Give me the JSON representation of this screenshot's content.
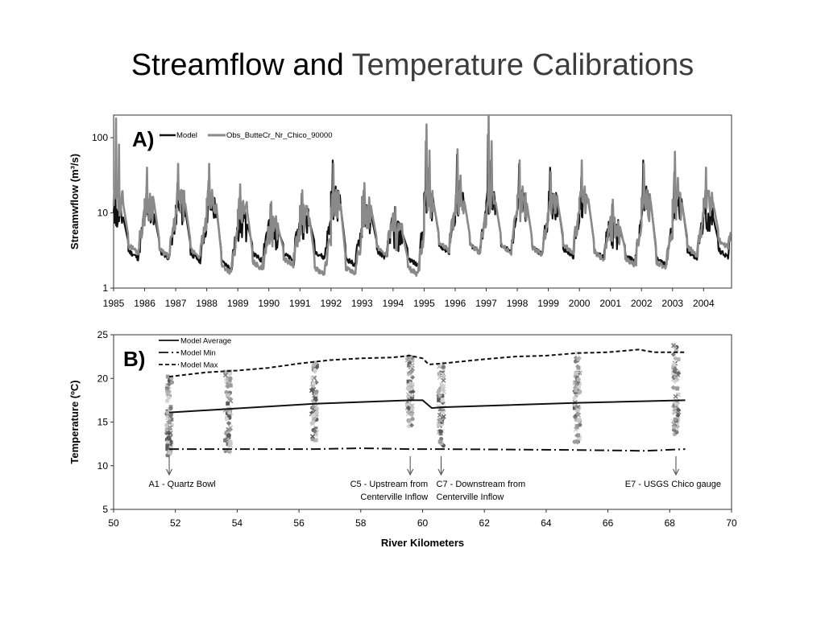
{
  "slide": {
    "title_part1": "Streamflow and",
    "title_part2": "Temperature Calibrations"
  },
  "colors": {
    "model": "#111111",
    "observed": "#8a8a8a",
    "frame": "#333333"
  },
  "chart_data": [
    {
      "type": "line",
      "panel_label": "A)",
      "ylabel": "Streamwflow (m³/s)",
      "yscale": "log",
      "ylim": [
        1,
        200
      ],
      "xlim": [
        1985,
        2004.9
      ],
      "y_ticks": [
        1,
        10,
        100
      ],
      "y_tick_labels": [
        "1",
        "10",
        "100"
      ],
      "x_tick_values": [
        1985,
        1986,
        1987,
        1988,
        1989,
        1990,
        1991,
        1992,
        1993,
        1994,
        1995,
        1996,
        1997,
        1998,
        1999,
        2000,
        2001,
        2002,
        2003,
        2004
      ],
      "x_tick_labels": [
        "1985",
        "1986",
        "1987",
        "1988",
        "1989",
        "1990",
        "1991",
        "1992",
        "1993",
        "1994",
        "1995",
        "1996",
        "1997",
        "1998",
        "1999",
        "2000",
        "2001",
        "2002",
        "2003",
        "2004"
      ],
      "legend_position": "top-left",
      "series": [
        {
          "name": "Model",
          "annual_peak": [
            20,
            22,
            25,
            27,
            16,
            13,
            18,
            50,
            20,
            12,
            90,
            60,
            110,
            45,
            40,
            30,
            13,
            50,
            35,
            20
          ],
          "annual_base": [
            2.5,
            2.5,
            2.3,
            1.8,
            2.3,
            2.3,
            2.5,
            2.0,
            2.5,
            2.0,
            3.0,
            3.0,
            3.0,
            2.8,
            2.7,
            2.5,
            2.2,
            2.0,
            2.5,
            2.6
          ]
        },
        {
          "name": "Obs_ButteCr_Nr_Chico_90000",
          "annual_peak": [
            180,
            40,
            45,
            45,
            24,
            14,
            20,
            45,
            25,
            12,
            150,
            70,
            200,
            50,
            35,
            50,
            15,
            45,
            65,
            40
          ],
          "annual_base": [
            3.0,
            2.6,
            2.6,
            1.6,
            1.8,
            2.0,
            1.5,
            1.5,
            2.8,
            1.5,
            3.2,
            3.0,
            3.0,
            2.8,
            3.0,
            2.4,
            2.0,
            1.8,
            2.8,
            3.5
          ]
        }
      ]
    },
    {
      "type": "scatter",
      "panel_label": "B)",
      "xlabel": "River Kilometers",
      "ylabel": "Temperature (ºC)",
      "xlim": [
        50,
        70
      ],
      "ylim": [
        5,
        25
      ],
      "x_ticks": [
        50,
        52,
        54,
        56,
        58,
        60,
        62,
        64,
        66,
        68,
        70
      ],
      "y_ticks": [
        5,
        10,
        15,
        20,
        25
      ],
      "legend_position": "top-left",
      "series": [
        {
          "name": "Model Average",
          "style": "solid",
          "x": [
            51.8,
            53.7,
            56.5,
            59.6,
            60.0,
            60.3,
            60.6,
            65.0,
            68.5
          ],
          "y": [
            16.1,
            16.5,
            17.1,
            17.5,
            17.5,
            16.6,
            16.7,
            17.2,
            17.5
          ]
        },
        {
          "name": "Model Min",
          "style": "dash-dot",
          "x": [
            51.8,
            53.7,
            56.5,
            58.0,
            59.6,
            60.6,
            65.0,
            67.2,
            68.5
          ],
          "y": [
            11.9,
            11.9,
            11.9,
            12.0,
            11.9,
            11.9,
            11.8,
            11.7,
            11.9
          ]
        },
        {
          "name": "Model Max",
          "style": "dashed",
          "x": [
            51.8,
            53.0,
            54.0,
            55.0,
            56.0,
            57.0,
            58.0,
            59.0,
            59.6,
            60.0,
            60.2,
            60.6,
            62.0,
            63.0,
            64.0,
            65.0,
            66.0,
            67.0,
            67.5,
            68.0,
            68.5
          ],
          "y": [
            20.2,
            20.7,
            20.9,
            21.2,
            21.7,
            22.1,
            22.3,
            22.4,
            22.6,
            22.3,
            21.6,
            21.7,
            22.2,
            22.5,
            22.6,
            22.9,
            23.0,
            23.3,
            23.0,
            23.0,
            23.0
          ]
        }
      ],
      "observations": [
        {
          "x": 51.8,
          "ymin": 11.2,
          "ymax": 20.2
        },
        {
          "x": 53.7,
          "ymin": 11.6,
          "ymax": 20.8
        },
        {
          "x": 56.5,
          "ymin": 12.9,
          "ymax": 21.8
        },
        {
          "x": 59.6,
          "ymin": 14.5,
          "ymax": 22.6
        },
        {
          "x": 60.6,
          "ymin": 12.3,
          "ymax": 21.7
        },
        {
          "x": 65.0,
          "ymin": 12.7,
          "ymax": 22.9
        },
        {
          "x": 68.2,
          "ymin": 13.6,
          "ymax": 23.9
        }
      ],
      "annotations": [
        {
          "x": 51.8,
          "lines": [
            "A1 - Quartz Bowl"
          ],
          "align": "middle"
        },
        {
          "x": 59.6,
          "lines": [
            "C5 - Upstream from",
            "Centerville Inflow"
          ],
          "align": "end"
        },
        {
          "x": 60.6,
          "lines": [
            "C7 - Downstream from",
            "Centerville Inflow"
          ],
          "align": "start"
        },
        {
          "x": 68.2,
          "lines": [
            "E7 - USGS Chico gauge"
          ],
          "align": "end"
        }
      ]
    }
  ]
}
